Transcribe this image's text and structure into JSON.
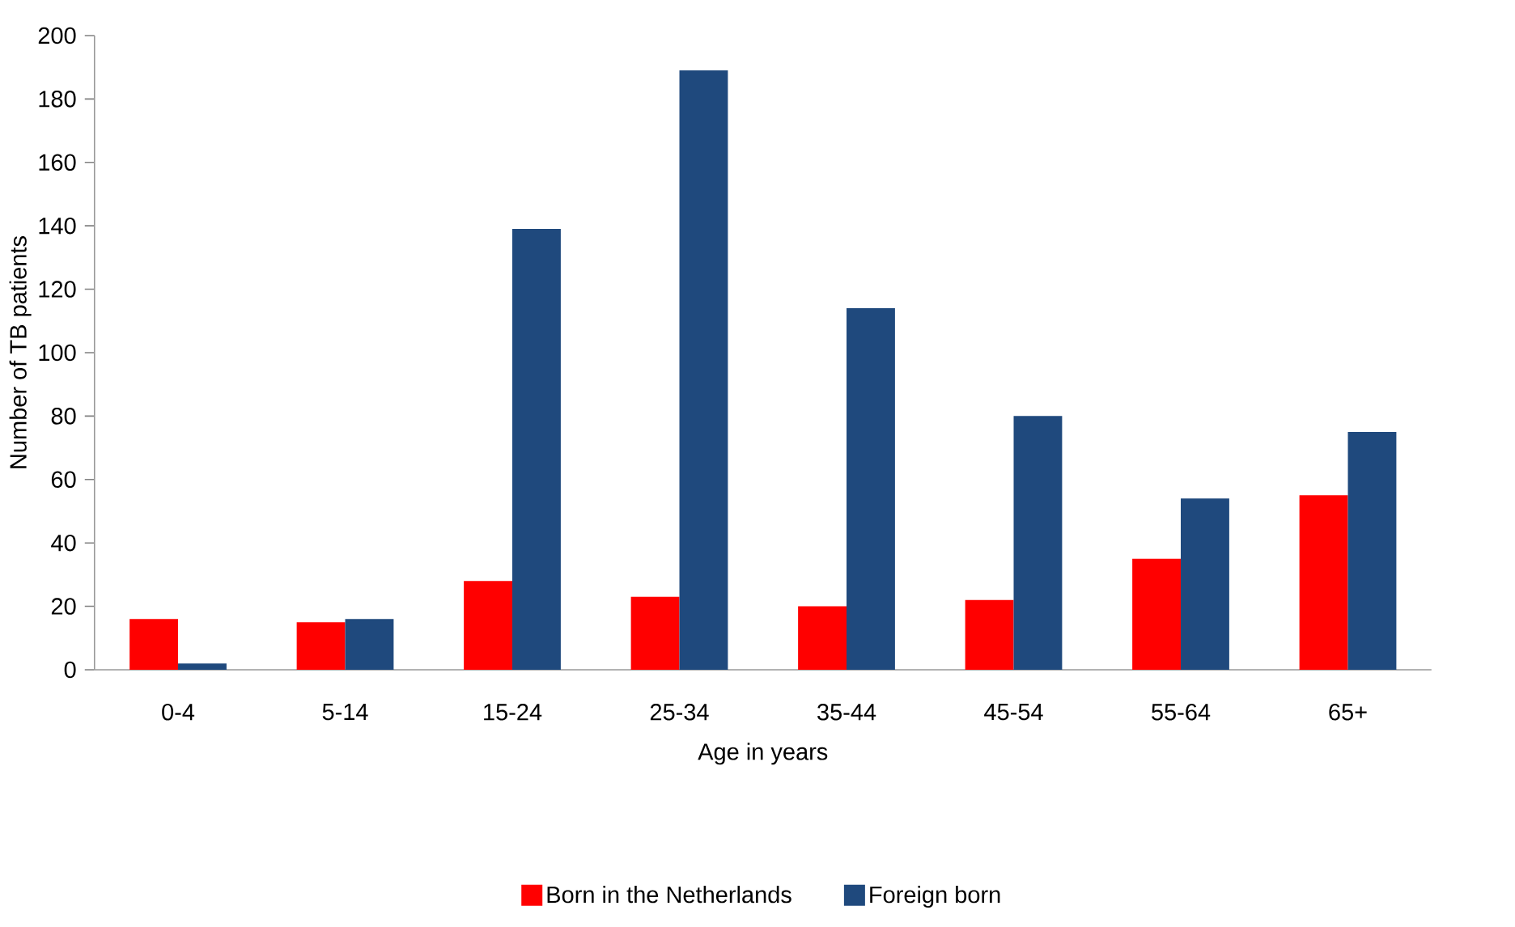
{
  "chart_data": {
    "type": "bar",
    "xlabel": "Age in years",
    "ylabel": "Number of TB patients",
    "categories": [
      "0-4",
      "5-14",
      "15-24",
      "25-34",
      "35-44",
      "45-54",
      "55-64",
      "65+"
    ],
    "series": [
      {
        "name": "Born in the Netherlands",
        "color": "#ff0000",
        "values": [
          16,
          15,
          28,
          23,
          20,
          22,
          35,
          55
        ]
      },
      {
        "name": "Foreign born",
        "color": "#1f497d",
        "values": [
          2,
          16,
          139,
          189,
          114,
          80,
          54,
          75
        ]
      }
    ],
    "ylim": [
      0,
      200
    ],
    "yticks": [
      0,
      20,
      40,
      60,
      80,
      100,
      120,
      140,
      160,
      180,
      200
    ],
    "grid": false,
    "legend": "bottom"
  }
}
